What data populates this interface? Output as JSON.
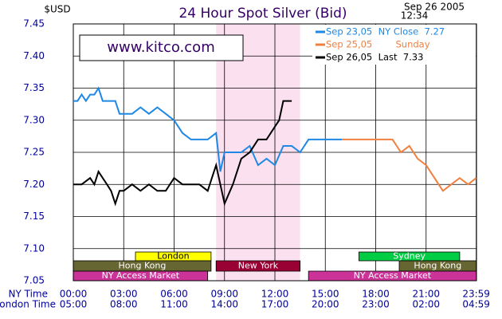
{
  "chart_data": {
    "type": "line",
    "title": "24 Hour Spot Silver (Bid)",
    "ylabel": "$USD",
    "date": "Sep 26 2005",
    "time": "12:34",
    "watermark": "www.kitco.com",
    "xlabel": "NY Time",
    "x2label": "London Time",
    "xlim": [
      0,
      24
    ],
    "ylim": [
      7.05,
      7.45
    ],
    "xticks": [
      {
        "value": 0,
        "label": "00:00"
      },
      {
        "value": 3,
        "label": "03:00"
      },
      {
        "value": 6,
        "label": "06:00"
      },
      {
        "value": 9,
        "label": "09:00"
      },
      {
        "value": 12,
        "label": "12:00"
      },
      {
        "value": 15,
        "label": "15:00"
      },
      {
        "value": 18,
        "label": "18:00"
      },
      {
        "value": 21,
        "label": "21:00"
      },
      {
        "value": 23.983,
        "label": "23:59"
      }
    ],
    "x2_labels": [
      "05:00",
      "08:00",
      "11:00",
      "14:00",
      "17:00",
      "20:00",
      "23:00",
      "02:00",
      "04:59"
    ],
    "yticks": [
      {
        "value": 7.05,
        "label": "7.05"
      },
      {
        "value": 7.1,
        "label": "7.10"
      },
      {
        "value": 7.15,
        "label": "7.15"
      },
      {
        "value": 7.2,
        "label": "7.20"
      },
      {
        "value": 7.25,
        "label": "7.25"
      },
      {
        "value": 7.3,
        "label": "7.30"
      },
      {
        "value": 7.35,
        "label": "7.35"
      },
      {
        "value": 7.4,
        "label": "7.40"
      },
      {
        "value": 7.45,
        "label": "7.45"
      }
    ],
    "grid": true,
    "shaded_x": [
      8.5,
      13.5
    ],
    "series": [
      {
        "name": "Sep 23,05  NY Close  7.27",
        "color": "#1e88e5",
        "x": [
          0,
          0.25,
          0.5,
          0.75,
          1,
          1.25,
          1.5,
          1.75,
          2,
          2.5,
          2.75,
          3,
          3.5,
          4,
          4.5,
          5,
          5.5,
          6,
          6.5,
          7,
          7.5,
          8,
          8.5,
          8.75,
          9,
          9.5,
          10,
          10.5,
          11,
          11.5,
          12,
          12.5,
          13,
          13.5,
          14,
          15,
          16
        ],
        "values": [
          7.33,
          7.33,
          7.34,
          7.33,
          7.34,
          7.34,
          7.35,
          7.33,
          7.33,
          7.33,
          7.31,
          7.31,
          7.31,
          7.32,
          7.31,
          7.32,
          7.31,
          7.3,
          7.28,
          7.27,
          7.27,
          7.27,
          7.28,
          7.22,
          7.25,
          7.25,
          7.25,
          7.26,
          7.23,
          7.24,
          7.23,
          7.26,
          7.26,
          7.25,
          7.27,
          7.27,
          7.27
        ]
      },
      {
        "name": "Sep 25,05        Sunday",
        "color": "#f08040",
        "x": [
          16,
          17,
          18,
          19,
          19.25,
          19.5,
          20,
          20.5,
          21,
          21.5,
          22,
          22.5,
          23,
          23.5,
          23.983
        ],
        "values": [
          7.27,
          7.27,
          7.27,
          7.27,
          7.26,
          7.25,
          7.26,
          7.24,
          7.23,
          7.21,
          7.19,
          7.2,
          7.21,
          7.2,
          7.21
        ]
      },
      {
        "name": "Sep 26,05  Last  7.33",
        "color": "#000000",
        "x": [
          0,
          0.5,
          1,
          1.25,
          1.5,
          1.75,
          2,
          2.25,
          2.5,
          2.75,
          3,
          3.5,
          4,
          4.5,
          5,
          5.5,
          6,
          6.5,
          7,
          7.5,
          8,
          8.25,
          8.5,
          8.75,
          9,
          9.5,
          10,
          10.5,
          11,
          11.5,
          12,
          12.25,
          12.5,
          13
        ],
        "values": [
          7.2,
          7.2,
          7.21,
          7.2,
          7.22,
          7.21,
          7.2,
          7.19,
          7.17,
          7.19,
          7.19,
          7.2,
          7.19,
          7.2,
          7.19,
          7.19,
          7.21,
          7.2,
          7.2,
          7.2,
          7.19,
          7.21,
          7.23,
          7.2,
          7.17,
          7.2,
          7.24,
          7.25,
          7.27,
          7.27,
          7.29,
          7.3,
          7.33,
          7.33
        ]
      }
    ],
    "sessions": [
      [
        {
          "label": "London",
          "start": 3.7,
          "end": 8.2,
          "color": "#ffff00",
          "text_color": "#000000"
        },
        {
          "label": "Sydney",
          "start": 17,
          "end": 23,
          "color": "#00cc44",
          "text_color": "#ffffff"
        }
      ],
      [
        {
          "label": "Hong Kong",
          "start": 0,
          "end": 8.2,
          "color": "#666633",
          "text_color": "#ffffff"
        },
        {
          "label": "New York",
          "start": 8.5,
          "end": 13.5,
          "color": "#990033",
          "text_color": "#ffffff"
        },
        {
          "label": "Hong Kong",
          "start": 19.4,
          "end": 23.983,
          "color": "#666633",
          "text_color": "#ffffff"
        }
      ],
      [
        {
          "label": "NY Access Market",
          "start": 0,
          "end": 8,
          "color": "#cc3399",
          "text_color": "#ffffff"
        },
        {
          "label": "NY Access Market",
          "start": 14,
          "end": 23.983,
          "color": "#cc3399",
          "text_color": "#ffffff"
        }
      ]
    ]
  }
}
